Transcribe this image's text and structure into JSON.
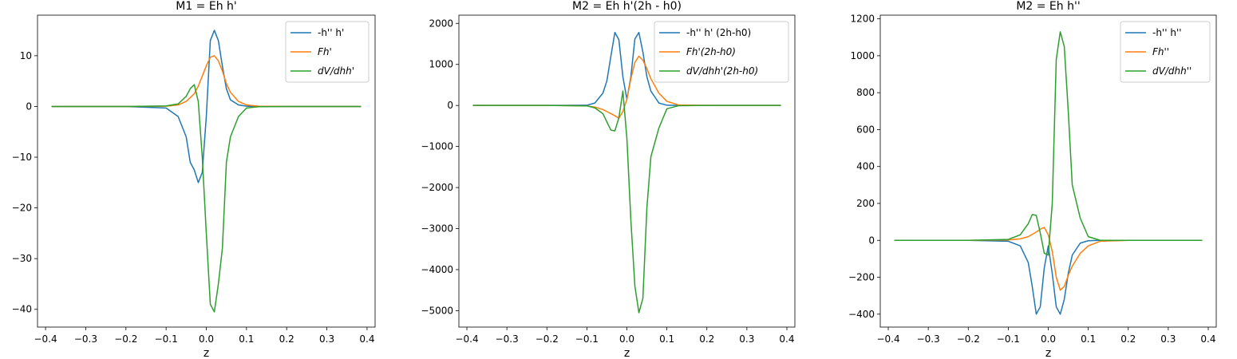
{
  "chart_data": [
    {
      "type": "line",
      "title": "M1 = Eh h'",
      "xlabel": "z",
      "ylabel": "",
      "xlim": [
        -0.42,
        0.42
      ],
      "ylim": [
        -43.5,
        18
      ],
      "xticks": [
        -0.4,
        -0.3,
        -0.2,
        -0.1,
        0.0,
        0.1,
        0.2,
        0.3,
        0.4
      ],
      "yticks": [
        -40,
        -30,
        -20,
        -10,
        0,
        10
      ],
      "legend": "top-right",
      "series": [
        {
          "name": "-h'' h'",
          "color": "#1f77b4",
          "x": [
            -0.385,
            -0.2,
            -0.1,
            -0.07,
            -0.05,
            -0.04,
            -0.03,
            -0.02,
            -0.01,
            0.0,
            0.01,
            0.02,
            0.03,
            0.04,
            0.05,
            0.06,
            0.08,
            0.1,
            0.13,
            0.2,
            0.385
          ],
          "y": [
            0,
            0,
            -0.3,
            -2,
            -6,
            -11,
            -12.5,
            -15,
            -13,
            -2,
            13,
            15,
            13,
            8,
            3.5,
            1.3,
            0.3,
            0.05,
            0,
            0,
            0
          ]
        },
        {
          "name": "Fh'",
          "color": "#ff7f0e",
          "x": [
            -0.385,
            -0.2,
            -0.1,
            -0.07,
            -0.05,
            -0.03,
            -0.02,
            -0.01,
            0.0,
            0.01,
            0.02,
            0.03,
            0.04,
            0.05,
            0.06,
            0.08,
            0.1,
            0.13,
            0.2,
            0.385
          ],
          "y": [
            0,
            0,
            0.05,
            0.3,
            1,
            2.5,
            4,
            6,
            8,
            9.7,
            10,
            9,
            7,
            4.5,
            2.8,
            1,
            0.3,
            0.05,
            0,
            0
          ]
        },
        {
          "name": "dV/dhh'",
          "color": "#2ca02c",
          "x": [
            -0.385,
            -0.2,
            -0.1,
            -0.07,
            -0.05,
            -0.04,
            -0.03,
            -0.02,
            -0.01,
            0.0,
            0.01,
            0.02,
            0.03,
            0.04,
            0.05,
            0.06,
            0.08,
            0.1,
            0.13,
            0.2,
            0.385
          ],
          "y": [
            0,
            0,
            0.1,
            0.5,
            2,
            3.5,
            4.3,
            1,
            -10,
            -25,
            -39,
            -40.5,
            -35,
            -28,
            -11,
            -6,
            -2,
            -0.3,
            -0.05,
            0,
            0
          ]
        }
      ]
    },
    {
      "type": "line",
      "title": "M2 = Eh h'(2h - h0)",
      "xlabel": "z",
      "ylabel": "",
      "xlim": [
        -0.42,
        0.42
      ],
      "ylim": [
        -5400,
        2200
      ],
      "xticks": [
        -0.4,
        -0.3,
        -0.2,
        -0.1,
        0.0,
        0.1,
        0.2,
        0.3,
        0.4
      ],
      "yticks": [
        -5000,
        -4000,
        -3000,
        -2000,
        -1000,
        0,
        1000,
        2000
      ],
      "legend": "top-right",
      "series": [
        {
          "name": "-h'' h' (2h-h0)",
          "color": "#1f77b4",
          "x": [
            -0.385,
            -0.2,
            -0.1,
            -0.08,
            -0.06,
            -0.05,
            -0.04,
            -0.03,
            -0.02,
            -0.01,
            0.0,
            0.01,
            0.02,
            0.03,
            0.04,
            0.05,
            0.06,
            0.08,
            0.1,
            0.13,
            0.2,
            0.385
          ],
          "y": [
            0,
            0,
            5,
            60,
            300,
            600,
            1200,
            1780,
            1600,
            700,
            150,
            700,
            1620,
            1780,
            1300,
            700,
            350,
            60,
            5,
            0,
            0,
            0
          ]
        },
        {
          "name": "Fh'(2h-h0)",
          "color": "#ff7f0e",
          "x": [
            -0.385,
            -0.2,
            -0.1,
            -0.08,
            -0.06,
            -0.04,
            -0.03,
            -0.02,
            -0.01,
            0.0,
            0.01,
            0.02,
            0.03,
            0.04,
            0.05,
            0.06,
            0.08,
            0.1,
            0.13,
            0.2,
            0.385
          ],
          "y": [
            0,
            0,
            -10,
            -40,
            -100,
            -200,
            -250,
            -310,
            -150,
            150,
            650,
            1050,
            1200,
            1100,
            900,
            650,
            300,
            100,
            10,
            0,
            0
          ]
        },
        {
          "name": "dV/dhh'(2h-h0)",
          "color": "#2ca02c",
          "x": [
            -0.385,
            -0.2,
            -0.1,
            -0.08,
            -0.06,
            -0.05,
            -0.04,
            -0.03,
            -0.02,
            -0.01,
            0.0,
            0.01,
            0.02,
            0.03,
            0.04,
            0.05,
            0.06,
            0.08,
            0.1,
            0.13,
            0.2,
            0.385
          ],
          "y": [
            0,
            0,
            -10,
            -60,
            -200,
            -400,
            -600,
            -620,
            -300,
            350,
            -800,
            -2800,
            -4400,
            -5050,
            -4700,
            -2500,
            -1250,
            -550,
            -80,
            -5,
            0,
            0
          ]
        }
      ]
    },
    {
      "type": "line",
      "title": "M2 = Eh h''",
      "xlabel": "z",
      "ylabel": "",
      "xlim": [
        -0.42,
        0.42
      ],
      "ylim": [
        -470,
        1220
      ],
      "xticks": [
        -0.4,
        -0.3,
        -0.2,
        -0.1,
        0.0,
        0.1,
        0.2,
        0.3,
        0.4
      ],
      "yticks": [
        -400,
        -200,
        0,
        200,
        400,
        600,
        800,
        1000,
        1200
      ],
      "legend": "top-right",
      "series": [
        {
          "name": "-h'' h''",
          "color": "#1f77b4",
          "x": [
            -0.385,
            -0.2,
            -0.1,
            -0.07,
            -0.05,
            -0.04,
            -0.03,
            -0.02,
            -0.01,
            0.0,
            0.01,
            0.02,
            0.03,
            0.04,
            0.05,
            0.06,
            0.08,
            0.1,
            0.13,
            0.2,
            0.385
          ],
          "y": [
            0,
            0,
            -5,
            -30,
            -120,
            -250,
            -400,
            -360,
            -150,
            -30,
            -180,
            -360,
            -400,
            -320,
            -180,
            -80,
            -15,
            -2,
            0,
            0,
            0
          ]
        },
        {
          "name": "Fh''",
          "color": "#ff7f0e",
          "x": [
            -0.385,
            -0.2,
            -0.1,
            -0.07,
            -0.05,
            -0.03,
            -0.02,
            -0.01,
            0.0,
            0.01,
            0.02,
            0.03,
            0.04,
            0.05,
            0.06,
            0.08,
            0.1,
            0.13,
            0.2,
            0.385
          ],
          "y": [
            0,
            0,
            2,
            8,
            20,
            45,
            60,
            70,
            30,
            -60,
            -200,
            -270,
            -250,
            -190,
            -140,
            -70,
            -30,
            -5,
            0,
            0
          ]
        },
        {
          "name": "dV/dhh''",
          "color": "#2ca02c",
          "x": [
            -0.385,
            -0.2,
            -0.1,
            -0.07,
            -0.05,
            -0.04,
            -0.03,
            -0.02,
            -0.01,
            0.0,
            0.01,
            0.02,
            0.03,
            0.04,
            0.05,
            0.06,
            0.08,
            0.1,
            0.13,
            0.2,
            0.385
          ],
          "y": [
            0,
            0,
            5,
            30,
            90,
            140,
            135,
            40,
            -70,
            -80,
            200,
            980,
            1130,
            1050,
            700,
            300,
            120,
            20,
            0,
            0,
            0
          ]
        }
      ]
    }
  ]
}
